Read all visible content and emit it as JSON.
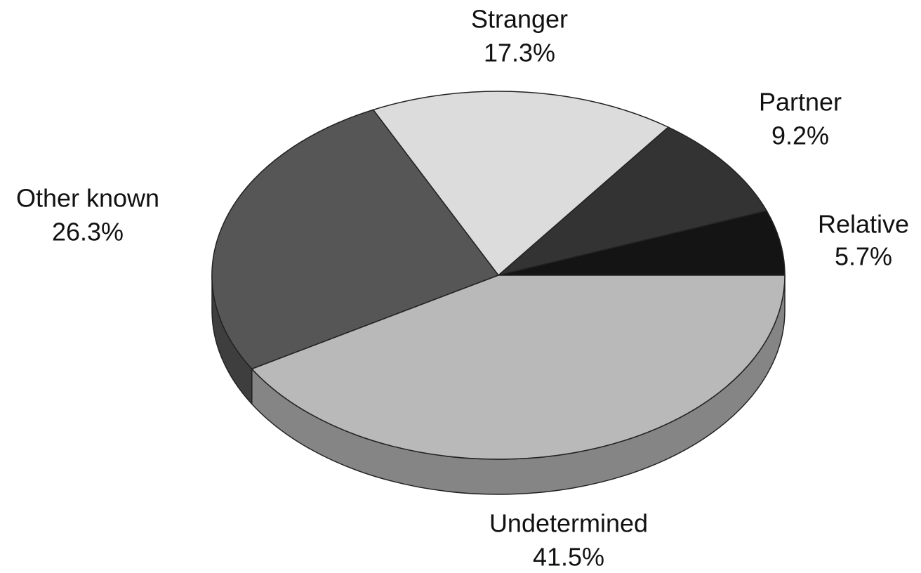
{
  "chart_data": {
    "type": "pie",
    "categories": [
      "Relative",
      "Partner",
      "Stranger",
      "Other known",
      "Undetermined"
    ],
    "values": [
      5.7,
      9.2,
      17.3,
      26.3,
      41.5
    ],
    "value_labels": [
      "5.7%",
      "9.2%",
      "17.3%",
      "26.3%",
      "41.5%"
    ],
    "colors": [
      "#141414",
      "#333333",
      "#dcdcdc",
      "#565656",
      "#b9b9b9"
    ]
  }
}
